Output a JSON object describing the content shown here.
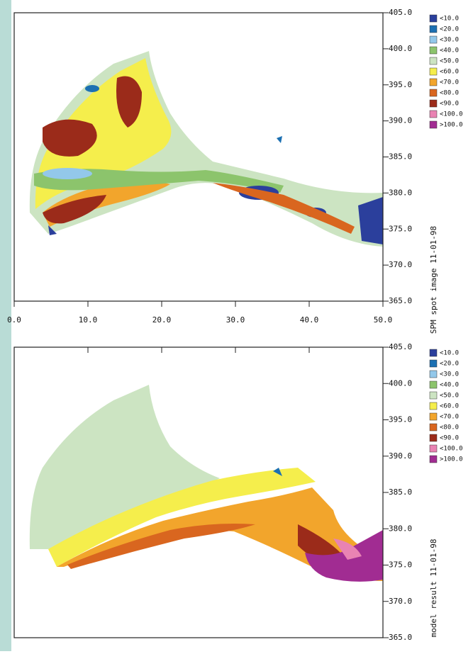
{
  "chart_data": [
    {
      "type": "map",
      "label": "SPM spot image 11-01-98",
      "xlim": [
        0,
        50
      ],
      "xticks": [
        {
          "value": 0,
          "label": "0.0"
        },
        {
          "value": 10,
          "label": "10.0"
        },
        {
          "value": 20,
          "label": "20.0"
        },
        {
          "value": 30,
          "label": "30.0"
        },
        {
          "value": 40,
          "label": "40.0"
        },
        {
          "value": 50,
          "label": "50.0"
        }
      ],
      "ylim": [
        365,
        405
      ],
      "yticks": [
        {
          "value": 405,
          "label": "405.0"
        },
        {
          "value": 400,
          "label": "400.0"
        },
        {
          "value": 395,
          "label": "395.0"
        },
        {
          "value": 390,
          "label": "390.0"
        },
        {
          "value": 385,
          "label": "385.0"
        },
        {
          "value": 380,
          "label": "380.0"
        },
        {
          "value": 375,
          "label": "375.0"
        },
        {
          "value": 370,
          "label": "370.0"
        },
        {
          "value": 365,
          "label": "365.0"
        }
      ],
      "legend": [
        {
          "label": "<10.0",
          "color": "#2b3f9c"
        },
        {
          "label": "<20.0",
          "color": "#1c70b2"
        },
        {
          "label": "<30.0",
          "color": "#93c8ea"
        },
        {
          "label": "<40.0",
          "color": "#8cc46c"
        },
        {
          "label": "<50.0",
          "color": "#cce4c2"
        },
        {
          "label": "<60.0",
          "color": "#f5ee4c"
        },
        {
          "label": "<70.0",
          "color": "#f2a52c"
        },
        {
          "label": "<80.0",
          "color": "#d9661f"
        },
        {
          "label": "<90.0",
          "color": "#9b2b1a"
        },
        {
          "label": "<100.0",
          "color": "#e983b3"
        },
        {
          "label": ">100.0",
          "color": "#a12c92"
        }
      ]
    },
    {
      "type": "map",
      "label": "model result 11-01-98",
      "ylim": [
        365,
        405
      ],
      "yticks": [
        {
          "value": 405,
          "label": "405.0"
        },
        {
          "value": 400,
          "label": "400.0"
        },
        {
          "value": 395,
          "label": "395.0"
        },
        {
          "value": 390,
          "label": "390.0"
        },
        {
          "value": 385,
          "label": "385.0"
        },
        {
          "value": 380,
          "label": "380.0"
        },
        {
          "value": 375,
          "label": "375.0"
        },
        {
          "value": 370,
          "label": "370.0"
        },
        {
          "value": 365,
          "label": "365.0"
        }
      ],
      "legend": [
        {
          "label": "<10.0",
          "color": "#2b3f9c"
        },
        {
          "label": "<20.0",
          "color": "#1c70b2"
        },
        {
          "label": "<30.0",
          "color": "#93c8ea"
        },
        {
          "label": "<40.0",
          "color": "#8cc46c"
        },
        {
          "label": "<50.0",
          "color": "#cce4c2"
        },
        {
          "label": "<60.0",
          "color": "#f5ee4c"
        },
        {
          "label": "<70.0",
          "color": "#f2a52c"
        },
        {
          "label": "<80.0",
          "color": "#d9661f"
        },
        {
          "label": "<90.0",
          "color": "#9b2b1a"
        },
        {
          "label": "<100.0",
          "color": "#e983b3"
        },
        {
          "label": ">100.0",
          "color": "#a12c92"
        }
      ]
    }
  ]
}
